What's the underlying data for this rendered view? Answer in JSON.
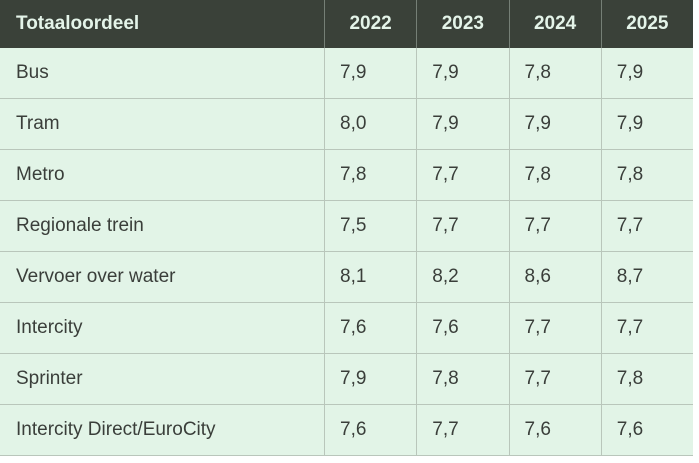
{
  "table": {
    "header": {
      "label": "Totaaloordeel",
      "years": [
        "2022",
        "2023",
        "2024",
        "2025"
      ]
    },
    "rows": [
      {
        "label": "Bus",
        "values": [
          "7,9",
          "7,9",
          "7,8",
          "7,9"
        ]
      },
      {
        "label": "Tram",
        "values": [
          "8,0",
          "7,9",
          "7,9",
          "7,9"
        ]
      },
      {
        "label": "Metro",
        "values": [
          "7,8",
          "7,7",
          "7,8",
          "7,8"
        ]
      },
      {
        "label": "Regionale trein",
        "values": [
          "7,5",
          "7,7",
          "7,7",
          "7,7"
        ]
      },
      {
        "label": "Vervoer over water",
        "values": [
          "8,1",
          "8,2",
          "8,6",
          "8,7"
        ]
      },
      {
        "label": "Intercity",
        "values": [
          "7,6",
          "7,6",
          "7,7",
          "7,7"
        ]
      },
      {
        "label": "Sprinter",
        "values": [
          "7,9",
          "7,8",
          "7,7",
          "7,8"
        ]
      },
      {
        "label": "Intercity Direct/EuroCity",
        "values": [
          "7,6",
          "7,7",
          "7,6",
          "7,6"
        ]
      }
    ]
  },
  "colors": {
    "header_background": "#3a4139",
    "header_text": "#e4f4e9",
    "row_background": "#e2f4e7",
    "row_text": "#3a3e3a",
    "border": "#b9c6bb"
  },
  "chart_data": {
    "type": "table",
    "title": "Totaaloordeel",
    "columns": [
      "2022",
      "2023",
      "2024",
      "2025"
    ],
    "rows": [
      {
        "label": "Bus",
        "values": [
          7.9,
          7.9,
          7.8,
          7.9
        ]
      },
      {
        "label": "Tram",
        "values": [
          8.0,
          7.9,
          7.9,
          7.9
        ]
      },
      {
        "label": "Metro",
        "values": [
          7.8,
          7.7,
          7.8,
          7.8
        ]
      },
      {
        "label": "Regionale trein",
        "values": [
          7.5,
          7.7,
          7.7,
          7.7
        ]
      },
      {
        "label": "Vervoer over water",
        "values": [
          8.1,
          8.2,
          8.6,
          8.7
        ]
      },
      {
        "label": "Intercity",
        "values": [
          7.6,
          7.6,
          7.7,
          7.7
        ]
      },
      {
        "label": "Sprinter",
        "values": [
          7.9,
          7.8,
          7.7,
          7.8
        ]
      },
      {
        "label": "Intercity Direct/EuroCity",
        "values": [
          7.6,
          7.7,
          7.6,
          7.6
        ]
      }
    ]
  }
}
